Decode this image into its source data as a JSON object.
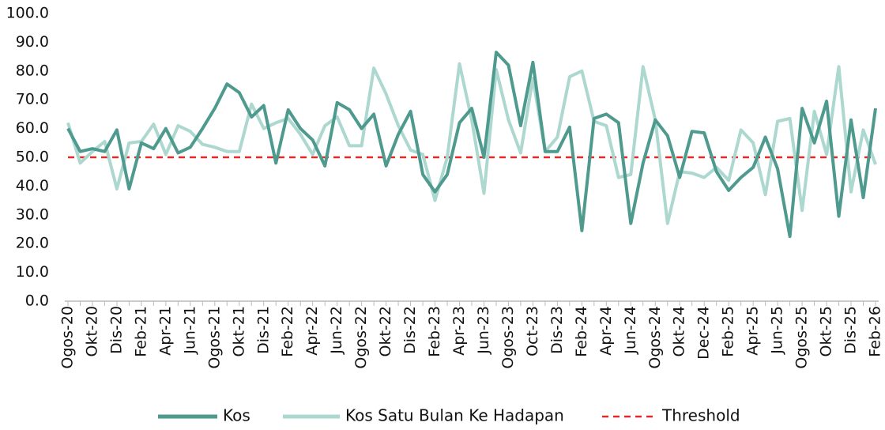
{
  "chart_data": {
    "type": "line",
    "categories": [
      "Ogos-20",
      null,
      "Okt-20",
      null,
      "Dis-20",
      null,
      "Feb-21",
      null,
      "Apr-21",
      null,
      "Jun-21",
      null,
      "Ogos-21",
      null,
      "Okt-21",
      null,
      "Dis-21",
      null,
      "Feb-22",
      null,
      "Apr-22",
      null,
      "Jun-22",
      null,
      "Ogos-22",
      null,
      "Okt-22",
      null,
      "Dis-22",
      null,
      "Feb-23",
      null,
      "Apr-23",
      null,
      "Jun-23",
      null,
      "Ogos-23",
      null,
      "Oct-23",
      null,
      "Dis-23",
      null,
      "Feb-24",
      null,
      "Apr-24",
      null,
      "Jun-24",
      null,
      "Ogos-24",
      null,
      "Okt-24",
      null,
      "Dec-24",
      null,
      "Feb-25",
      null,
      "Apr-25",
      null,
      "Jun-25",
      null,
      "Ogos-25",
      null,
      "Okt-25",
      null,
      "Dis-25",
      null,
      "Feb-26"
    ],
    "series": [
      {
        "name": "Kos",
        "color": "#4e9a8e",
        "values": [
          60,
          52,
          53,
          52,
          59.5,
          39,
          55,
          53,
          60,
          51.5,
          53.5,
          60,
          67,
          75.5,
          72.5,
          64,
          68,
          48,
          66.5,
          60,
          56,
          47,
          69,
          66.5,
          60,
          65,
          47,
          58,
          66,
          44,
          38,
          44,
          62,
          67,
          50,
          86.5,
          82,
          61,
          83,
          52,
          52,
          60.5,
          24.5,
          63.5,
          65,
          62,
          27,
          48,
          63,
          57.5,
          43,
          59,
          58.5,
          45,
          38.5,
          43,
          46.5,
          57,
          46,
          22.5,
          67,
          55,
          69.5,
          29.5,
          63,
          36,
          67
        ]
      },
      {
        "name": "Kos Satu Bulan Ke Hadapan",
        "color": "#acd8d0",
        "values": [
          62,
          48,
          52,
          55.5,
          39,
          55,
          55.5,
          61.5,
          51,
          61,
          59,
          54.5,
          53.5,
          52,
          52,
          68.5,
          60,
          62,
          63.5,
          58,
          51,
          61,
          64,
          54,
          54,
          81,
          72,
          61,
          52.5,
          51,
          35,
          50,
          82.5,
          63,
          37.5,
          80.5,
          63,
          51.5,
          77.5,
          52,
          57,
          78,
          80,
          62.5,
          61,
          43,
          44,
          81.5,
          63,
          27,
          45,
          44.5,
          43,
          46.5,
          42,
          59.5,
          55,
          37,
          62.5,
          63.5,
          31.5,
          66,
          51,
          81.5,
          38,
          59.5,
          47.5
        ]
      }
    ],
    "threshold": {
      "name": "Threshold",
      "value": 50,
      "color": "#e02b2b"
    },
    "ylim": [
      0,
      100
    ],
    "yticks": [
      {
        "value": 0,
        "label": "0.0"
      },
      {
        "value": 10,
        "label": "10.0"
      },
      {
        "value": 20,
        "label": "20.0"
      },
      {
        "value": 30,
        "label": "30.0"
      },
      {
        "value": 40,
        "label": "40.0"
      },
      {
        "value": 50,
        "label": "50.0"
      },
      {
        "value": 60,
        "label": "60.0"
      },
      {
        "value": 70,
        "label": "70.0"
      },
      {
        "value": 80,
        "label": "80.0"
      },
      {
        "value": 90,
        "label": "90.0"
      },
      {
        "value": 100,
        "label": "100.0"
      }
    ],
    "grid": false,
    "legend": "bottom"
  }
}
